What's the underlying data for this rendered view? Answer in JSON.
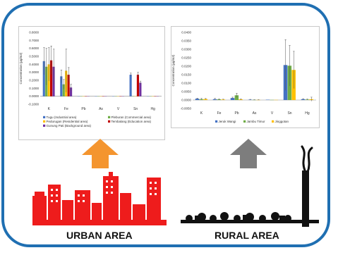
{
  "labels": {
    "urban": "URBAN AREA",
    "rural": "RURAL AREA"
  },
  "colors": {
    "frame": "#1f6fb2",
    "urban_arrow": "#f4952f",
    "rural_arrow": "#7d7d7d",
    "city": "#ee1c1c",
    "village": "#111111"
  },
  "chart_data": [
    {
      "type": "bar",
      "panel": "urban",
      "ylabel": "Concentration (µg/m3)",
      "ylim": [
        -0.1,
        0.8
      ],
      "yticks": [
        "0.8000",
        "0.7000",
        "0.6000",
        "0.5000",
        "0.4000",
        "0.3000",
        "0.2000",
        "0.1000",
        "0.0000",
        "-0.1000"
      ],
      "categories": [
        "K",
        "Fe",
        "Pb",
        "As",
        "V",
        "Sn",
        "Hg"
      ],
      "series": [
        {
          "name": "Tugu (Industrial area)",
          "color": "#4472c4",
          "values": [
            0.44,
            0.25,
            0.0,
            0.0,
            0.0,
            0.27,
            0.0
          ],
          "errors": [
            0.17,
            0.08,
            0.0,
            0.0,
            0.0,
            0.02,
            0.0
          ]
        },
        {
          "name": "Pleburan (Commercial area)",
          "color": "#70ad47",
          "values": [
            0.37,
            0.15,
            0.0,
            0.0,
            0.0,
            0.0,
            0.0
          ],
          "errors": [
            0.23,
            0.06,
            0.0,
            0.0,
            0.0,
            0.0,
            0.0
          ]
        },
        {
          "name": "Pedurugan (Residential area)",
          "color": "#ffc000",
          "values": [
            0.4,
            0.32,
            0.0,
            0.0,
            0.0,
            0.0,
            0.0
          ],
          "errors": [
            0.21,
            0.27,
            0.0,
            0.0,
            0.0,
            0.0,
            0.0
          ]
        },
        {
          "name": "Tembalang (Education area)",
          "color": "#c00000",
          "values": [
            0.45,
            0.27,
            0.0,
            0.0,
            0.0,
            0.27,
            0.0
          ],
          "errors": [
            0.18,
            0.09,
            0.0,
            0.0,
            0.0,
            0.03,
            0.0
          ]
        },
        {
          "name": "Gunung Pati (Background area)",
          "color": "#7030a0",
          "values": [
            0.37,
            0.11,
            0.0,
            0.0,
            0.0,
            0.17,
            0.0
          ],
          "errors": [
            0.22,
            0.04,
            0.0,
            0.0,
            0.0,
            0.02,
            0.0
          ]
        }
      ],
      "legend_rows": [
        [
          0,
          1
        ],
        [
          2,
          3
        ],
        [
          4
        ]
      ]
    },
    {
      "type": "bar",
      "panel": "rural",
      "ylabel": "Concentration (µg/m3)",
      "ylim": [
        -0.005,
        0.04
      ],
      "yticks": [
        "0.0400",
        "0.0350",
        "0.0300",
        "0.0250",
        "0.0200",
        "0.0150",
        "0.0100",
        "0.0050",
        "0.0000",
        "-0.0050"
      ],
      "categories": [
        "K",
        "Fe",
        "Pb",
        "As",
        "V",
        "Sn",
        "Hg"
      ],
      "series": [
        {
          "name": "Jeruk Wangi",
          "color": "#4472c4",
          "values": [
            0.0008,
            0.0005,
            0.0012,
            0.0002,
            0.0002,
            0.0207,
            0.0005
          ],
          "errors": [
            0.0003,
            0.0005,
            0.0005,
            0.0002,
            0.0,
            0.015,
            0.0003
          ]
        },
        {
          "name": "Jambu Timur",
          "color": "#70ad47",
          "values": [
            0.0005,
            0.0004,
            0.0028,
            0.0001,
            0.0001,
            0.0203,
            0.0003
          ],
          "errors": [
            0.0005,
            0.0003,
            0.0012,
            0.0001,
            0.0,
            0.012,
            0.0003
          ]
        },
        {
          "name": "Jinggotan",
          "color": "#ffc000",
          "values": [
            0.0006,
            0.0003,
            0.0004,
            0.0001,
            0.0001,
            0.0178,
            0.0005
          ],
          "errors": [
            0.0003,
            0.0002,
            0.0003,
            0.0001,
            0.0,
            0.011,
            0.0012
          ]
        }
      ],
      "legend_rows": [
        [
          0,
          1,
          2
        ]
      ]
    }
  ]
}
